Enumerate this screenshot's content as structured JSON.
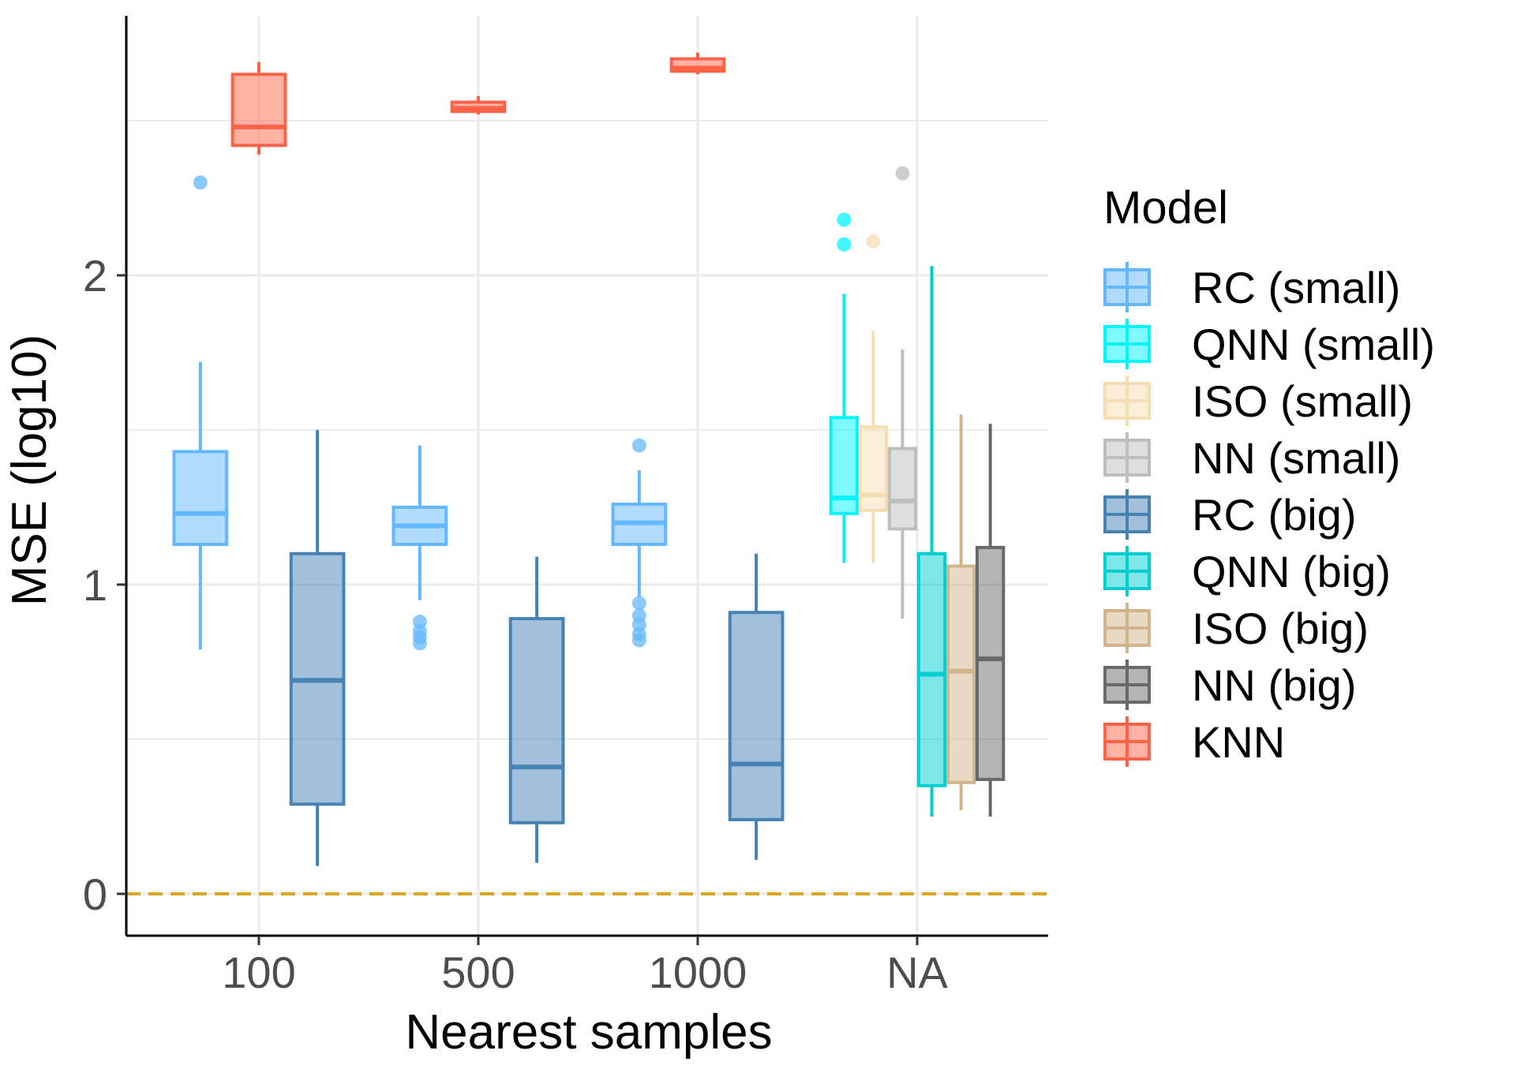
{
  "chart_data": {
    "type": "boxplot",
    "title": "",
    "xlabel": "Nearest samples",
    "ylabel": "MSE (log10)",
    "categories": [
      "100",
      "500",
      "1000",
      "NA"
    ],
    "yticks": [
      0,
      1,
      2
    ],
    "ylim": [
      -0.13,
      2.95
    ],
    "grid": true,
    "reference_line": {
      "y": 0,
      "color": "#DAA520",
      "style": "dashed"
    },
    "legend": {
      "title": "Model",
      "position": "right",
      "entries": [
        {
          "label": "RC (small)",
          "fill": "#63B8FF",
          "stroke": "#63B8FF"
        },
        {
          "label": "QNN (small)",
          "fill": "#00F5FF",
          "stroke": "#00F5FF"
        },
        {
          "label": "ISO (small)",
          "fill": "#F5DEB3",
          "stroke": "#F5DEB3"
        },
        {
          "label": "NN (small)",
          "fill": "#BEBEBE",
          "stroke": "#BEBEBE"
        },
        {
          "label": "RC (big)",
          "fill": "#4682B4",
          "stroke": "#4682B4"
        },
        {
          "label": "QNN (big)",
          "fill": "#00CED1",
          "stroke": "#00CED1"
        },
        {
          "label": "ISO (big)",
          "fill": "#D2B48C",
          "stroke": "#D2B48C"
        },
        {
          "label": "NN (big)",
          "fill": "#696969",
          "stroke": "#696969"
        },
        {
          "label": "KNN",
          "fill": "#FF6347",
          "stroke": "#FF6347"
        }
      ]
    },
    "series": [
      {
        "name": "RC (small)",
        "category": "100",
        "lower": 0.79,
        "q1": 1.13,
        "median": 1.23,
        "q3": 1.43,
        "upper": 1.72,
        "outliers": [
          2.3
        ]
      },
      {
        "name": "KNN",
        "category": "100",
        "lower": 2.39,
        "q1": 2.42,
        "median": 2.48,
        "q3": 2.65,
        "upper": 2.69,
        "outliers": []
      },
      {
        "name": "RC (big)",
        "category": "100",
        "lower": 0.09,
        "q1": 0.29,
        "median": 0.69,
        "q3": 1.1,
        "upper": 1.5,
        "outliers": []
      },
      {
        "name": "RC (small)",
        "category": "500",
        "lower": 0.95,
        "q1": 1.13,
        "median": 1.19,
        "q3": 1.25,
        "upper": 1.45,
        "outliers": [
          0.88,
          0.85,
          0.83,
          0.81
        ]
      },
      {
        "name": "KNN",
        "category": "500",
        "lower": 2.52,
        "q1": 2.53,
        "median": 2.54,
        "q3": 2.56,
        "upper": 2.58,
        "outliers": []
      },
      {
        "name": "RC (big)",
        "category": "500",
        "lower": 0.1,
        "q1": 0.23,
        "median": 0.41,
        "q3": 0.89,
        "upper": 1.09,
        "outliers": []
      },
      {
        "name": "RC (small)",
        "category": "1000",
        "lower": 0.96,
        "q1": 1.13,
        "median": 1.2,
        "q3": 1.26,
        "upper": 1.37,
        "outliers": [
          1.45,
          0.94,
          0.9,
          0.87,
          0.84,
          0.82
        ]
      },
      {
        "name": "KNN",
        "category": "1000",
        "lower": 2.65,
        "q1": 2.66,
        "median": 2.67,
        "q3": 2.7,
        "upper": 2.72,
        "outliers": []
      },
      {
        "name": "RC (big)",
        "category": "1000",
        "lower": 0.11,
        "q1": 0.24,
        "median": 0.42,
        "q3": 0.91,
        "upper": 1.1,
        "outliers": []
      },
      {
        "name": "QNN (small)",
        "category": "NA",
        "lower": 1.07,
        "q1": 1.23,
        "median": 1.28,
        "q3": 1.54,
        "upper": 1.94,
        "outliers": [
          2.18,
          2.1
        ]
      },
      {
        "name": "ISO (small)",
        "category": "NA",
        "lower": 1.07,
        "q1": 1.24,
        "median": 1.29,
        "q3": 1.51,
        "upper": 1.82,
        "outliers": [
          2.11
        ]
      },
      {
        "name": "NN (small)",
        "category": "NA",
        "lower": 0.89,
        "q1": 1.18,
        "median": 1.27,
        "q3": 1.44,
        "upper": 1.76,
        "outliers": [
          2.33
        ]
      },
      {
        "name": "QNN (big)",
        "category": "NA",
        "lower": 0.25,
        "q1": 0.35,
        "median": 0.71,
        "q3": 1.1,
        "upper": 2.03,
        "outliers": []
      },
      {
        "name": "ISO (big)",
        "category": "NA",
        "lower": 0.27,
        "q1": 0.36,
        "median": 0.72,
        "q3": 1.06,
        "upper": 1.55,
        "outliers": []
      },
      {
        "name": "NN (big)",
        "category": "NA",
        "lower": 0.25,
        "q1": 0.37,
        "median": 0.76,
        "q3": 1.12,
        "upper": 1.52,
        "outliers": []
      }
    ]
  }
}
